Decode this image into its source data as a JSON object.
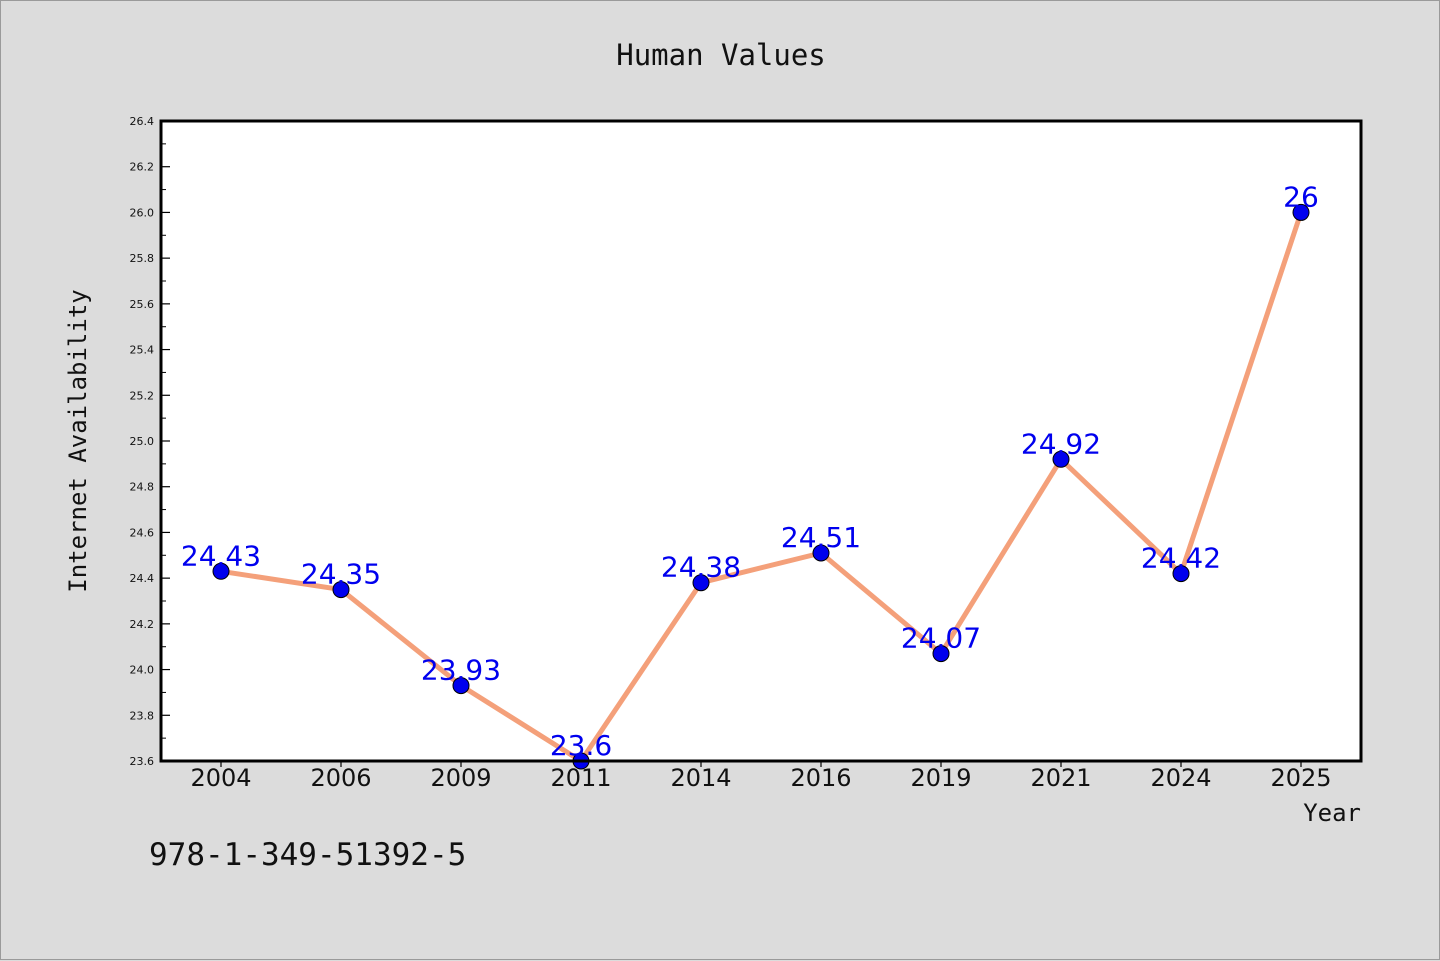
{
  "chart_data": {
    "type": "line",
    "title": "Human Values",
    "xlabel": "Year",
    "ylabel": "Internet Availability",
    "categories": [
      "2004",
      "2006",
      "2009",
      "2011",
      "2014",
      "2016",
      "2019",
      "2021",
      "2024",
      "2025"
    ],
    "values": [
      24.43,
      24.35,
      23.93,
      23.6,
      24.38,
      24.51,
      24.07,
      24.92,
      24.42,
      26
    ],
    "data_labels": [
      "24.43",
      "24.35",
      "23.93",
      "23.6",
      "24.38",
      "24.51",
      "24.07",
      "24.92",
      "24.42",
      "26"
    ],
    "ylim": [
      23.6,
      26.4
    ],
    "yticks": [
      "23.6",
      "23.8",
      "24.0",
      "24.2",
      "24.4",
      "24.6",
      "24.8",
      "25.0",
      "25.2",
      "25.4",
      "25.6",
      "25.8",
      "26.0",
      "26.2",
      "26.4"
    ],
    "grid": false,
    "line_color": "#f4a07a",
    "marker_color": "#0000ee"
  },
  "footer": {
    "isbn": "978-1-349-51392-5"
  }
}
